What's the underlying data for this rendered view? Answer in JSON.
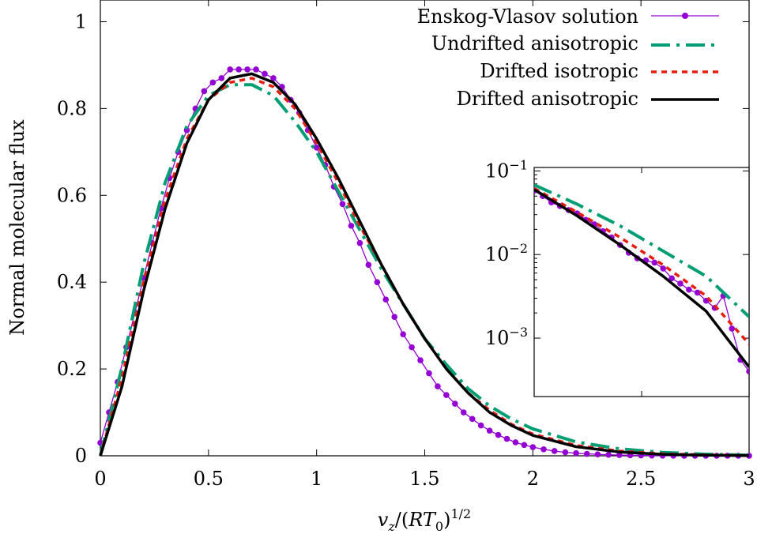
{
  "chart_data": [
    {
      "type": "line",
      "xlabel": "v_z/(RT_0)^1/2",
      "ylabel": "Normal molecular flux",
      "xlim": [
        0,
        3
      ],
      "ylim": [
        0,
        1.05
      ],
      "xticks": [
        "0",
        "0.5",
        "1",
        "1.5",
        "2",
        "2.5",
        "3"
      ],
      "yticks": [
        "0",
        "0.2",
        "0.4",
        "0.6",
        "0.8",
        "1"
      ],
      "legend_position": "top-right",
      "series": [
        {
          "name": "Enskog-Vlasov solution",
          "color": "#9400d3",
          "style": "line-points",
          "x": [
            0.0,
            0.04,
            0.08,
            0.12,
            0.16,
            0.2,
            0.24,
            0.28,
            0.32,
            0.36,
            0.4,
            0.44,
            0.48,
            0.52,
            0.56,
            0.6,
            0.64,
            0.68,
            0.72,
            0.76,
            0.8,
            0.84,
            0.88,
            0.92,
            0.96,
            1.0,
            1.04,
            1.08,
            1.12,
            1.16,
            1.2,
            1.24,
            1.28,
            1.32,
            1.36,
            1.4,
            1.44,
            1.48,
            1.52,
            1.56,
            1.6,
            1.64,
            1.68,
            1.72,
            1.76,
            1.8,
            1.84,
            1.88,
            1.92,
            1.96,
            2.0,
            2.05,
            2.1,
            2.15,
            2.2,
            2.25,
            2.3,
            2.35,
            2.4,
            2.45,
            2.5,
            2.55,
            2.6,
            2.65,
            2.7,
            2.75,
            2.8,
            2.85,
            2.9,
            2.95,
            3.0
          ],
          "y": [
            0.03,
            0.1,
            0.17,
            0.25,
            0.33,
            0.41,
            0.49,
            0.57,
            0.64,
            0.7,
            0.75,
            0.8,
            0.84,
            0.86,
            0.87,
            0.89,
            0.89,
            0.89,
            0.89,
            0.88,
            0.87,
            0.85,
            0.82,
            0.79,
            0.75,
            0.71,
            0.67,
            0.62,
            0.58,
            0.53,
            0.49,
            0.44,
            0.4,
            0.36,
            0.32,
            0.28,
            0.25,
            0.22,
            0.19,
            0.16,
            0.14,
            0.12,
            0.1,
            0.085,
            0.07,
            0.058,
            0.048,
            0.039,
            0.031,
            0.025,
            0.02,
            0.015,
            0.011,
            0.008,
            0.006,
            0.0045,
            0.0033,
            0.0024,
            0.0017,
            0.0012,
            0.0009,
            0.0006,
            0.0004,
            0.0003,
            0.0002,
            0.00015,
            0.0001,
            7e-05,
            5e-05,
            3e-05,
            2e-05
          ]
        },
        {
          "name": "Undrifted anisotropic",
          "color": "#009e73",
          "style": "dash-dot",
          "x": [
            0,
            0.1,
            0.2,
            0.3,
            0.4,
            0.5,
            0.6,
            0.7,
            0.8,
            0.9,
            1.0,
            1.1,
            1.2,
            1.3,
            1.4,
            1.5,
            1.6,
            1.7,
            1.8,
            1.9,
            2.0,
            2.2,
            2.4,
            2.6,
            2.8,
            3.0
          ],
          "y": [
            0,
            0.205,
            0.44,
            0.63,
            0.76,
            0.83,
            0.855,
            0.855,
            0.83,
            0.77,
            0.7,
            0.61,
            0.52,
            0.43,
            0.35,
            0.27,
            0.21,
            0.155,
            0.115,
            0.085,
            0.062,
            0.032,
            0.016,
            0.0078,
            0.0037,
            0.0017
          ]
        },
        {
          "name": "Drifted isotropic",
          "color": "#e51e10",
          "style": "dashed",
          "x": [
            0,
            0.1,
            0.2,
            0.3,
            0.4,
            0.5,
            0.6,
            0.7,
            0.8,
            0.9,
            1.0,
            1.1,
            1.2,
            1.3,
            1.4,
            1.5,
            1.6,
            1.7,
            1.8,
            1.9,
            2.0,
            2.2,
            2.4,
            2.6,
            2.8,
            3.0
          ],
          "y": [
            0,
            0.18,
            0.4,
            0.59,
            0.73,
            0.82,
            0.86,
            0.87,
            0.85,
            0.8,
            0.72,
            0.63,
            0.53,
            0.44,
            0.35,
            0.27,
            0.2,
            0.145,
            0.105,
            0.073,
            0.05,
            0.024,
            0.011,
            0.0048,
            0.002,
            0.0008
          ]
        },
        {
          "name": "Drifted anisotropic",
          "color": "#000000",
          "style": "solid",
          "x": [
            0,
            0.1,
            0.2,
            0.3,
            0.4,
            0.5,
            0.6,
            0.7,
            0.8,
            0.9,
            1.0,
            1.1,
            1.2,
            1.3,
            1.4,
            1.5,
            1.6,
            1.7,
            1.8,
            1.9,
            2.0,
            2.2,
            2.4,
            2.6,
            2.8,
            3.0
          ],
          "y": [
            0,
            0.16,
            0.38,
            0.57,
            0.72,
            0.82,
            0.87,
            0.88,
            0.86,
            0.81,
            0.73,
            0.64,
            0.54,
            0.44,
            0.35,
            0.27,
            0.2,
            0.145,
            0.1,
            0.07,
            0.047,
            0.021,
            0.0088,
            0.0035,
            0.0013,
            0.00045
          ]
        }
      ]
    },
    {
      "type": "line",
      "y_scale": "log",
      "xlim": [
        2,
        3
      ],
      "ylim": [
        0.0002,
        0.11
      ],
      "yticks": [
        "10^-1",
        "10^-2",
        "10^-3"
      ],
      "series": [
        {
          "name": "Enskog-Vlasov solution",
          "x": [
            2.0,
            2.04,
            2.08,
            2.12,
            2.16,
            2.2,
            2.24,
            2.28,
            2.32,
            2.36,
            2.4,
            2.44,
            2.48,
            2.52,
            2.56,
            2.6,
            2.64,
            2.68,
            2.72,
            2.76,
            2.8,
            2.84,
            2.88,
            2.92,
            2.96,
            3.0
          ],
          "y": [
            0.058,
            0.05,
            0.042,
            0.038,
            0.034,
            0.031,
            0.026,
            0.023,
            0.019,
            0.016,
            0.013,
            0.0105,
            0.009,
            0.0085,
            0.008,
            0.0068,
            0.0052,
            0.0045,
            0.0038,
            0.0035,
            0.0028,
            0.0023,
            0.0032,
            0.0013,
            0.00055,
            0.0004
          ]
        },
        {
          "name": "Undrifted anisotropic",
          "x": [
            2.0,
            2.2,
            2.4,
            2.6,
            2.8,
            3.0
          ],
          "y": [
            0.068,
            0.04,
            0.022,
            0.011,
            0.0055,
            0.0018
          ]
        },
        {
          "name": "Drifted isotropic",
          "x": [
            2.0,
            2.2,
            2.4,
            2.6,
            2.8,
            3.0
          ],
          "y": [
            0.062,
            0.032,
            0.016,
            0.0075,
            0.0032,
            0.00085
          ]
        },
        {
          "name": "Drifted anisotropic",
          "x": [
            2.0,
            2.2,
            2.4,
            2.6,
            2.8,
            3.0
          ],
          "y": [
            0.06,
            0.029,
            0.013,
            0.0055,
            0.0021,
            0.00045
          ]
        }
      ]
    }
  ]
}
